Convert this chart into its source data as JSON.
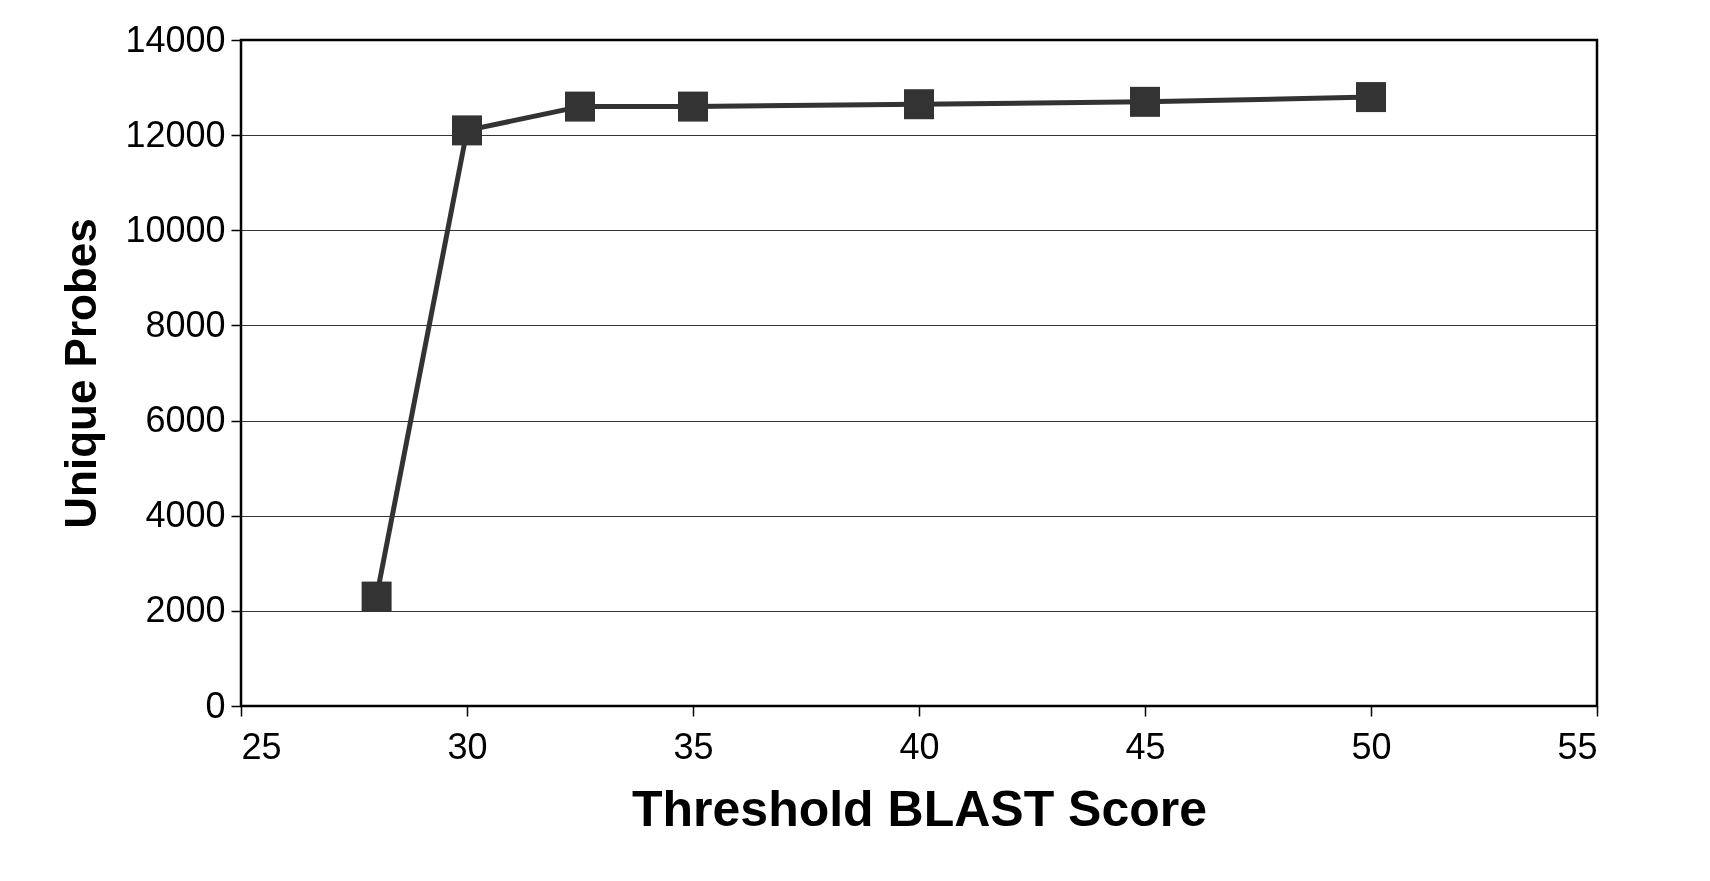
{
  "chart_data": {
    "type": "line",
    "xlabel": "Threshold BLAST Score",
    "ylabel": "Unique Probes",
    "x": [
      28,
      30,
      32.5,
      35,
      40,
      45,
      50
    ],
    "series": [
      {
        "color": "#333333",
        "values": [
          2300,
          12100,
          12600,
          12600,
          12650,
          12700,
          12800
        ]
      }
    ],
    "xlim": [
      25,
      55
    ],
    "xticks": [
      25,
      30,
      35,
      40,
      45,
      50,
      55
    ],
    "ylim": [
      0,
      14000
    ],
    "yticks": [
      0,
      2000,
      4000,
      6000,
      8000,
      10000,
      12000,
      14000
    ],
    "grid": "y",
    "marker": "square",
    "line_style": "solid",
    "legend": false
  }
}
